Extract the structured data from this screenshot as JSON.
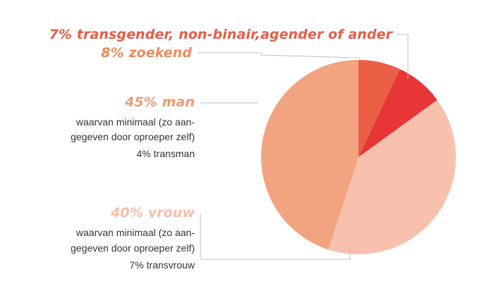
{
  "chart_data": {
    "type": "pie",
    "title": "",
    "slices": [
      {
        "label": "7% transgender, non-binair,agender of ander",
        "value": 7,
        "color": "#ea5e45",
        "notes": []
      },
      {
        "label": "8% zoekend",
        "value": 8,
        "color": "#e83535",
        "notes": []
      },
      {
        "label": "40% vrouw",
        "value": 40,
        "color": "#f8c1ad",
        "notes": [
          "waarvan minimaal (zo aan-",
          "gegeven door oproeper zelf)",
          "7% transvrouw"
        ]
      },
      {
        "label": "45% man",
        "value": 45,
        "color": "#f2a37f",
        "notes": [
          "waarvan minimaal (zo aan-",
          "gegeven door oproeper zelf)",
          "4% transman"
        ]
      }
    ],
    "label_colors": {
      "transgender": "#e85c45",
      "zoekend": "#ef8a5d",
      "man": "#ef9a74",
      "vrouw": "#f7bda6"
    },
    "leader_line_color": "#c0c0c0",
    "legend": "none"
  }
}
